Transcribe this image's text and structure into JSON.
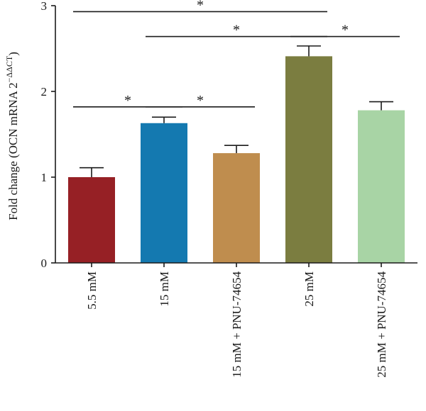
{
  "chart_data": {
    "type": "bar",
    "title": "",
    "xlabel": "",
    "ylabel": "Fold change (OCN mRNA 2",
    "ylabel_superscript": "−ΔΔCT",
    "ylabel_suffix": ")",
    "ylim": [
      0,
      3
    ],
    "yticks": [
      "0",
      "1",
      "2",
      "3"
    ],
    "categories": [
      "5.5 mM",
      "15 mM",
      "15 mM + PNU-74654",
      "25 mM",
      "25 mM + PNU-74654"
    ],
    "values": [
      1.0,
      1.63,
      1.28,
      2.41,
      1.78
    ],
    "errors": [
      0.11,
      0.07,
      0.09,
      0.12,
      0.1
    ],
    "colors": [
      "#962025",
      "#1479b0",
      "#bf8d4e",
      "#7b7d40",
      "#a8d4a5"
    ],
    "significance": [
      {
        "from": 0,
        "to": 1,
        "label": "*",
        "level": 1.82
      },
      {
        "from": 1,
        "to": 2,
        "label": "*",
        "level": 1.82
      },
      {
        "from": 1,
        "to": 3,
        "label": "*",
        "level": 2.64
      },
      {
        "from": 3,
        "to": 4,
        "label": "*",
        "level": 2.64
      },
      {
        "from": 0,
        "to": 3,
        "label": "*",
        "level": 2.93
      }
    ]
  }
}
